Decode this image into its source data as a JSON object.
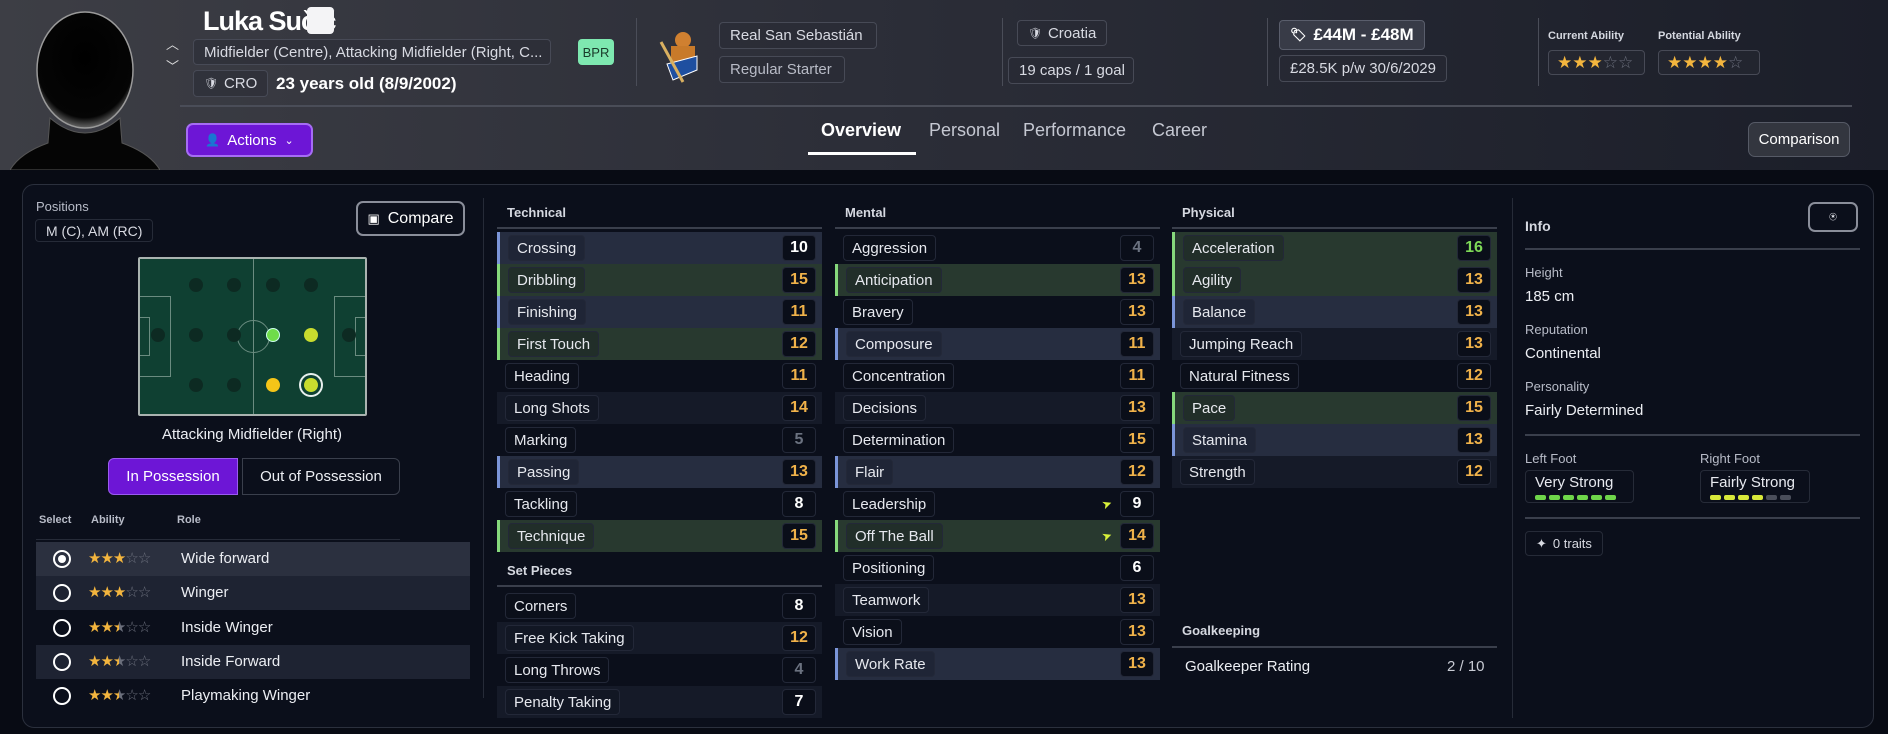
{
  "header": {
    "name": "Luka Sučić",
    "positions": "Midfielder (Centre), Attacking Midfielder (Right, C...",
    "badge": "BPR",
    "nation_code": "CRO",
    "age": "23 years old (8/9/2002)",
    "club": "Real San Sebastián",
    "squad_status": "Regular Starter",
    "nation": "Croatia",
    "caps": "19 caps / 1 goal",
    "value": "£44M - £48M",
    "wage": "£28.5K p/w",
    "contract_end": "30/6/2029",
    "current_ability_label": "Current Ability",
    "potential_ability_label": "Potential Ability",
    "current_ability_stars": 3,
    "potential_ability_stars": 4,
    "actions_label": "Actions",
    "tabs": [
      {
        "label": "Overview",
        "active": true
      },
      {
        "label": "Personal"
      },
      {
        "label": "Performance"
      },
      {
        "label": "Career"
      }
    ],
    "comparison_label": "Comparison"
  },
  "left": {
    "positions_label": "Positions",
    "positions_value": "M (C), AM (RC)",
    "compare_label": "Compare",
    "selected_position": "Attacking Midfielder (Right)",
    "toggle": [
      "In Possession",
      "Out of Possession"
    ],
    "table_headers": [
      "Select",
      "Ability",
      "Role"
    ],
    "roles": [
      {
        "name": "Wide forward",
        "stars": 3,
        "selected": true
      },
      {
        "name": "Winger",
        "stars": 3
      },
      {
        "name": "Inside Winger",
        "stars": 2.5
      },
      {
        "name": "Inside Forward",
        "stars": 2.5
      },
      {
        "name": "Playmaking Winger",
        "stars": 2.5
      }
    ]
  },
  "attributes": {
    "technical": {
      "title": "Technical",
      "items": [
        {
          "name": "Crossing",
          "value": 10,
          "hl": "blue"
        },
        {
          "name": "Dribbling",
          "value": 15,
          "hl": "green"
        },
        {
          "name": "Finishing",
          "value": 11,
          "hl": "blue"
        },
        {
          "name": "First Touch",
          "value": 12,
          "hl": "green"
        },
        {
          "name": "Heading",
          "value": 11
        },
        {
          "name": "Long Shots",
          "value": 14
        },
        {
          "name": "Marking",
          "value": 5
        },
        {
          "name": "Passing",
          "value": 13,
          "hl": "blue"
        },
        {
          "name": "Tackling",
          "value": 8
        },
        {
          "name": "Technique",
          "value": 15,
          "hl": "green"
        }
      ]
    },
    "set_pieces": {
      "title": "Set Pieces",
      "items": [
        {
          "name": "Corners",
          "value": 8
        },
        {
          "name": "Free Kick Taking",
          "value": 12
        },
        {
          "name": "Long Throws",
          "value": 4
        },
        {
          "name": "Penalty Taking",
          "value": 7
        }
      ]
    },
    "mental": {
      "title": "Mental",
      "items": [
        {
          "name": "Aggression",
          "value": 4
        },
        {
          "name": "Anticipation",
          "value": 13,
          "hl": "green"
        },
        {
          "name": "Bravery",
          "value": 13
        },
        {
          "name": "Composure",
          "value": 11,
          "hl": "blue"
        },
        {
          "name": "Concentration",
          "value": 11
        },
        {
          "name": "Decisions",
          "value": 13
        },
        {
          "name": "Determination",
          "value": 15
        },
        {
          "name": "Flair",
          "value": 12,
          "hl": "blue"
        },
        {
          "name": "Leadership",
          "value": 9,
          "trend": "up"
        },
        {
          "name": "Off The Ball",
          "value": 14,
          "hl": "green",
          "trend": "up"
        },
        {
          "name": "Positioning",
          "value": 6
        },
        {
          "name": "Teamwork",
          "value": 13
        },
        {
          "name": "Vision",
          "value": 13
        },
        {
          "name": "Work Rate",
          "value": 13,
          "hl": "blue"
        }
      ]
    },
    "physical": {
      "title": "Physical",
      "items": [
        {
          "name": "Acceleration",
          "value": 16,
          "hl": "green"
        },
        {
          "name": "Agility",
          "value": 13,
          "hl": "green"
        },
        {
          "name": "Balance",
          "value": 13,
          "hl": "blue"
        },
        {
          "name": "Jumping Reach",
          "value": 13
        },
        {
          "name": "Natural Fitness",
          "value": 12
        },
        {
          "name": "Pace",
          "value": 15,
          "hl": "green"
        },
        {
          "name": "Stamina",
          "value": 13,
          "hl": "blue"
        },
        {
          "name": "Strength",
          "value": 12
        }
      ]
    },
    "goalkeeping": {
      "title": "Goalkeeping",
      "rating_label": "Goalkeeper Rating",
      "rating": "2 / 10"
    }
  },
  "info": {
    "title": "Info",
    "height_label": "Height",
    "height": "185 cm",
    "reputation_label": "Reputation",
    "reputation": "Continental",
    "personality_label": "Personality",
    "personality": "Fairly Determined",
    "left_foot_label": "Left Foot",
    "left_foot": "Very Strong",
    "left_foot_level": 6,
    "right_foot_label": "Right Foot",
    "right_foot": "Fairly Strong",
    "right_foot_level": 4,
    "foot_level_max": 6,
    "traits": "0 traits"
  },
  "colors": {
    "accent": "#6d16d6",
    "value_high": "#7ed957",
    "value_good": "#f0b24a",
    "value_mid": "#ffffff",
    "value_low": "#6b7280",
    "bpr": "#7ee8b0"
  }
}
